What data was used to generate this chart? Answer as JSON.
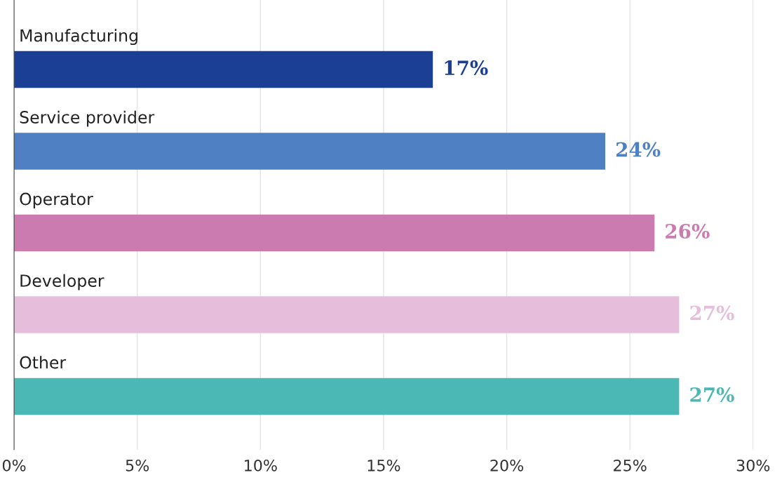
{
  "chart_data": {
    "type": "bar",
    "orientation": "horizontal",
    "categories": [
      "Manufacturing",
      "Service provider",
      "Operator",
      "Developer",
      "Other"
    ],
    "values": [
      17,
      24,
      26,
      27,
      27
    ],
    "colors": [
      "#1a3f94",
      "#4f80c4",
      "#cc7bb0",
      "#e6bedc",
      "#4cb8b5"
    ],
    "value_labels": [
      "17%",
      "24%",
      "26%",
      "27%",
      "27%"
    ],
    "xlim": [
      0,
      30
    ],
    "xticks": [
      {
        "value": 0,
        "label": "0%"
      },
      {
        "value": 5,
        "label": "5%"
      },
      {
        "value": 10,
        "label": "10%"
      },
      {
        "value": 15,
        "label": "15%"
      },
      {
        "value": 20,
        "label": "20%"
      },
      {
        "value": 25,
        "label": "25%"
      },
      {
        "value": 30,
        "label": "30%"
      }
    ],
    "grid": "x",
    "tick_labels": "x"
  }
}
